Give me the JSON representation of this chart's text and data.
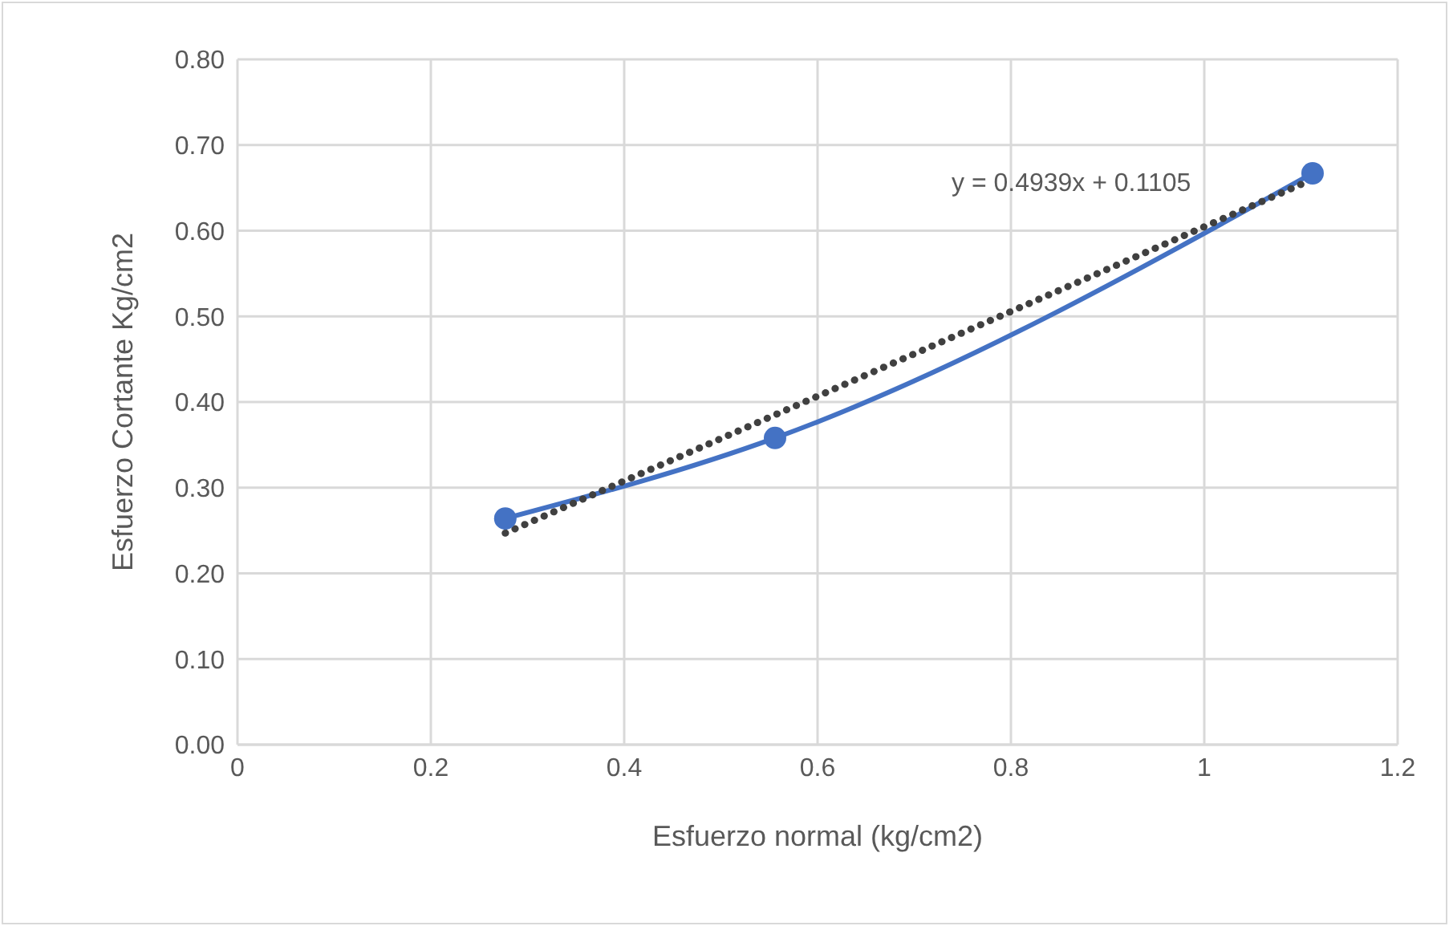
{
  "chart_data": {
    "type": "line",
    "xlabel": "Esfuerzo normal (kg/cm2)",
    "ylabel": "Esfuerzo Cortante Kg/cm2",
    "series": [
      {
        "color": "#4472c4",
        "x": [
          0.277,
          0.556,
          1.112
        ],
        "values": [
          0.264,
          0.358,
          0.667
        ],
        "marker": "circle",
        "line_style": "solid"
      },
      {
        "color": "#404040",
        "x": [
          0.277,
          1.112
        ],
        "values": [
          0.247,
          0.66
        ],
        "marker": "none",
        "line_style": "dotted"
      }
    ],
    "annotations": [
      "y = 0.4939x + 0.1105"
    ],
    "xlim": [
      0,
      1.2
    ],
    "xticks": [
      0,
      0.2,
      0.4,
      0.6,
      0.8,
      1,
      1.2
    ],
    "ylim": [
      0,
      0.8
    ],
    "yticks": [
      {
        "value": 0,
        "label": "0.00"
      },
      {
        "value": 0.1,
        "label": "0.10"
      },
      {
        "value": 0.2,
        "label": "0.20"
      },
      {
        "value": 0.3,
        "label": "0.30"
      },
      {
        "value": 0.4,
        "label": "0.40"
      },
      {
        "value": 0.5,
        "label": "0.50"
      },
      {
        "value": 0.6,
        "label": "0.60"
      },
      {
        "value": 0.7,
        "label": "0.70"
      },
      {
        "value": 0.8,
        "label": "0.80"
      }
    ],
    "grid": true
  }
}
